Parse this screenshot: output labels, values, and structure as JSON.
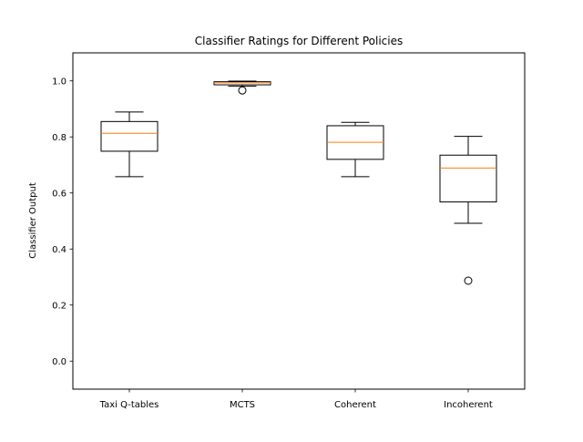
{
  "chart_data": {
    "type": "box",
    "title": "Classifier Ratings for Different Policies",
    "xlabel": "",
    "ylabel": "Classifier Output",
    "ylim": [
      -0.1,
      1.1
    ],
    "yticks": [
      0.0,
      0.2,
      0.4,
      0.6,
      0.8,
      1.0
    ],
    "ytick_labels": [
      "0.0",
      "0.2",
      "0.4",
      "0.6",
      "0.8",
      "1.0"
    ],
    "grid": false,
    "categories": [
      "Taxi Q-tables",
      "MCTS",
      "Coherent",
      "Incoherent"
    ],
    "boxes": [
      {
        "whisker_low": 0.658,
        "q1": 0.749,
        "median": 0.813,
        "q3": 0.855,
        "whisker_high": 0.889,
        "outliers": []
      },
      {
        "whisker_low": 0.981,
        "q1": 0.986,
        "median": 0.993,
        "q3": 0.997,
        "whisker_high": 0.999,
        "outliers": [
          0.966
        ]
      },
      {
        "whisker_low": 0.658,
        "q1": 0.72,
        "median": 0.781,
        "q3": 0.84,
        "whisker_high": 0.852,
        "outliers": []
      },
      {
        "whisker_low": 0.492,
        "q1": 0.568,
        "median": 0.689,
        "q3": 0.735,
        "whisker_high": 0.802,
        "outliers": [
          0.287
        ]
      }
    ],
    "colors": {
      "box": "#000000",
      "median": "#ff7f0e",
      "outlier": "#000000",
      "background": "#ffffff"
    }
  }
}
